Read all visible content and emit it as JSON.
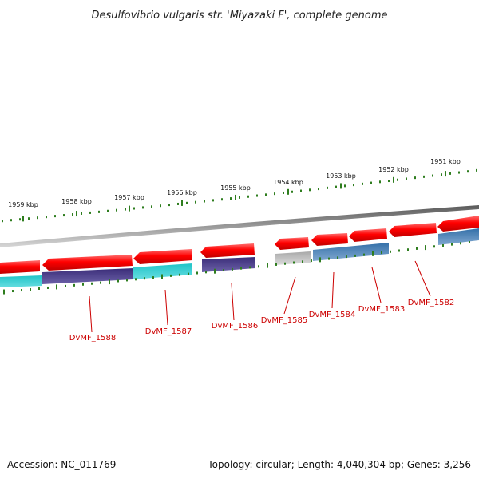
{
  "title": "Desulfovibrio vulgaris str. 'Miyazaki F', complete genome",
  "footer": {
    "accession": "Accession: NC_011769",
    "summary": "Topology: circular; Length: 4,040,304 bp; Genes: 3,256"
  },
  "ticks": [
    "1959 kbp",
    "1958 kbp",
    "1957 kbp",
    "1956 kbp",
    "1955 kbp",
    "1954 kbp",
    "1953 kbp",
    "1952 kbp",
    "1951 kbp"
  ],
  "genes": [
    "DvMF_1588",
    "DvMF_1587",
    "DvMF_1586",
    "DvMF_1585",
    "DvMF_1584",
    "DvMF_1583",
    "DvMF_1582"
  ],
  "colors": {
    "feature_red": "#ff0000",
    "backbone": "#808080",
    "tick_green": "#2e7d1e",
    "label_red": "#cc0000",
    "cog_teal": "#20c4c8",
    "cog_purple": "#4a3a8a",
    "cog_blue": "#3f78b0",
    "cog_grey": "#b8b8b8"
  }
}
